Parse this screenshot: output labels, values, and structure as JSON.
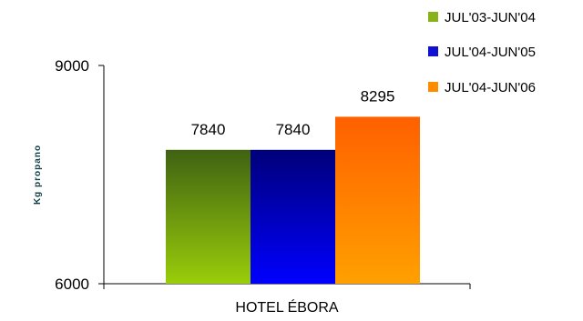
{
  "chart_data": {
    "type": "bar",
    "categories": [
      "HOTEL ÉBORA"
    ],
    "series": [
      {
        "name": "JUL'03-JUN'04",
        "values": [
          7840
        ]
      },
      {
        "name": "JUL'04-JUN'05",
        "values": [
          7840
        ]
      },
      {
        "name": "JUL'04-JUN'06",
        "values": [
          8295
        ]
      }
    ],
    "data_labels": [
      "7840",
      "7840",
      "8295"
    ],
    "title": "",
    "xlabel": "",
    "ylabel": "Kg propano",
    "ylim": [
      6000,
      9000
    ],
    "yticks": [
      "6000",
      "9000"
    ],
    "grid": false,
    "legend_position": "top-right",
    "colors": [
      {
        "top": "#3f6212",
        "bottom": "#9acd0a",
        "legend": "#88b21a"
      },
      {
        "top": "#00007a",
        "bottom": "#0000ff",
        "legend": "#1010d0"
      },
      {
        "top": "#ff6000",
        "bottom": "#ffa000",
        "legend": "#ff8c00"
      }
    ]
  }
}
